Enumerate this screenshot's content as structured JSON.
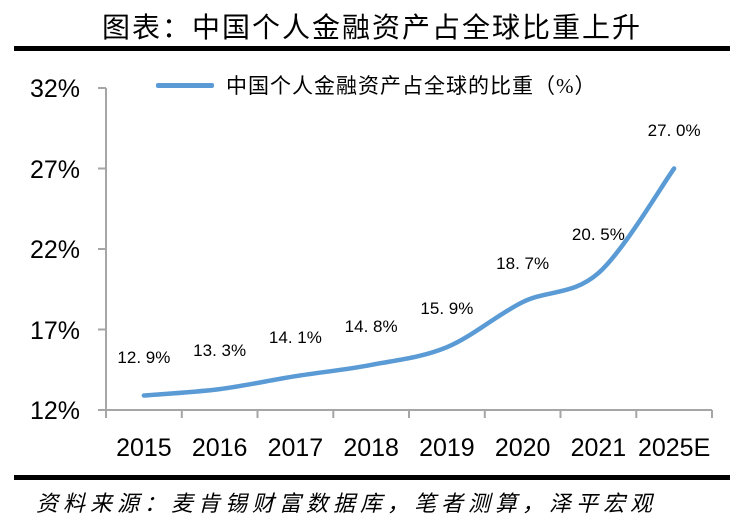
{
  "header": {
    "title": "图表：中国个人金融资产占全球比重上升"
  },
  "chart_data": {
    "type": "line",
    "title": "图表：中国个人金融资产占全球比重上升",
    "legend": "中国个人金融资产占全球的比重（%）",
    "legend_position": "top",
    "categories": [
      "2015",
      "2016",
      "2017",
      "2018",
      "2019",
      "2020",
      "2021",
      "2025E"
    ],
    "values": [
      12.9,
      13.3,
      14.1,
      14.8,
      15.9,
      18.7,
      20.5,
      27.0
    ],
    "data_labels": [
      "12. 9%",
      "13. 3%",
      "14. 1%",
      "14. 8%",
      "15. 9%",
      "18. 7%",
      "20. 5%",
      "27. 0%"
    ],
    "xlabel": "",
    "ylabel": "",
    "ylim": [
      12,
      32
    ],
    "y_ticks": [
      12,
      17,
      22,
      27,
      32
    ],
    "y_tick_labels": [
      "12%",
      "17%",
      "22%",
      "27%",
      "32%"
    ],
    "grid": false,
    "smooth": true,
    "line_color": "#5B9BD5",
    "axis_color": "#A6A6A6",
    "rule_color": "#000000"
  },
  "footer": {
    "source": "资料来源：麦肯锡财富数据库，笔者测算，泽平宏观"
  }
}
